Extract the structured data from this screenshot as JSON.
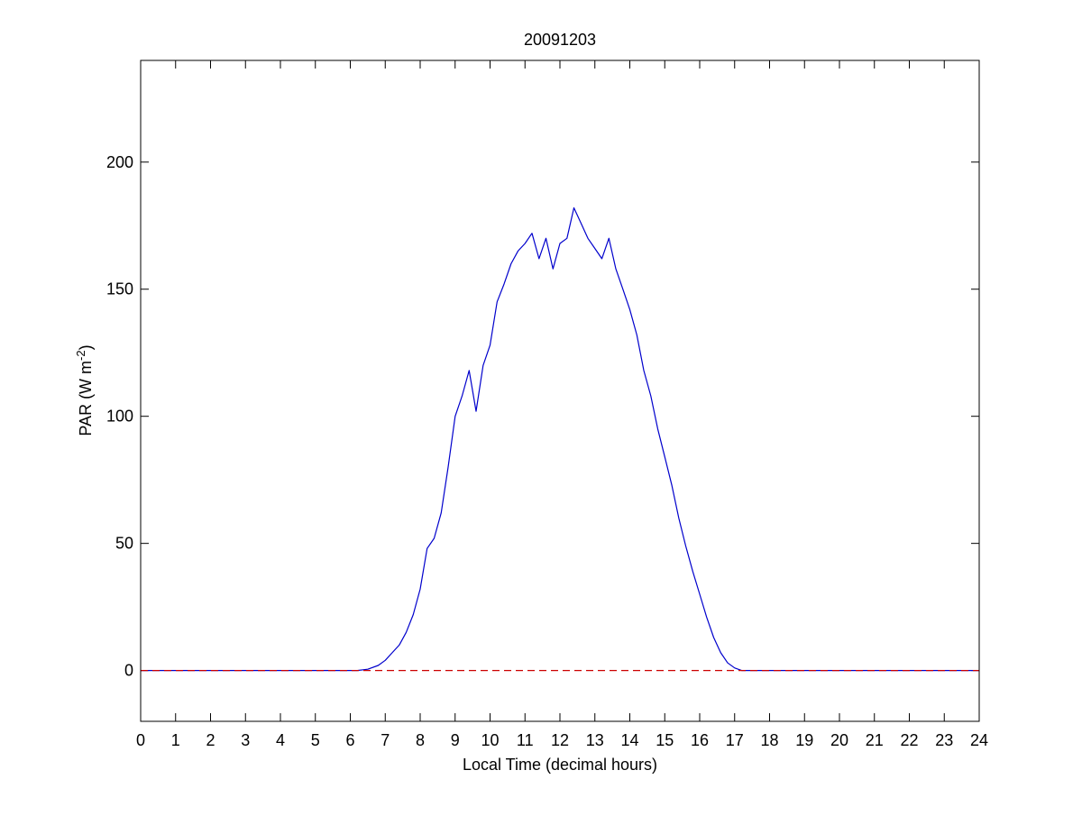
{
  "chart_data": {
    "type": "line",
    "title": "20091203",
    "xlabel": "Local Time (decimal hours)",
    "ylabel": {
      "prefix": "PAR (W m",
      "superscript": "-2",
      "suffix": ")"
    },
    "xlim": [
      0,
      24
    ],
    "ylim": [
      -20,
      240
    ],
    "xticks": [
      0,
      1,
      2,
      3,
      4,
      5,
      6,
      7,
      8,
      9,
      10,
      11,
      12,
      13,
      14,
      15,
      16,
      17,
      18,
      19,
      20,
      21,
      22,
      23,
      24
    ],
    "yticks": [
      0,
      50,
      100,
      150,
      200
    ],
    "grid": false,
    "series": [
      {
        "color": "#0000cc",
        "style": "solid",
        "x": [
          0,
          6.2,
          6.5,
          6.8,
          7.0,
          7.2,
          7.4,
          7.6,
          7.8,
          8.0,
          8.2,
          8.4,
          8.6,
          8.8,
          9.0,
          9.2,
          9.4,
          9.6,
          9.8,
          10.0,
          10.2,
          10.4,
          10.6,
          10.8,
          11.0,
          11.2,
          11.4,
          11.6,
          11.8,
          12.0,
          12.2,
          12.4,
          12.6,
          12.8,
          13.0,
          13.2,
          13.4,
          13.6,
          13.8,
          14.0,
          14.2,
          14.4,
          14.6,
          14.8,
          15.0,
          15.2,
          15.4,
          15.6,
          15.8,
          16.0,
          16.2,
          16.4,
          16.6,
          16.8,
          17.0,
          17.2,
          17.5,
          24
        ],
        "y": [
          0,
          0,
          0.5,
          2,
          4,
          7,
          10,
          15,
          22,
          32,
          48,
          52,
          62,
          80,
          100,
          108,
          118,
          102,
          120,
          128,
          145,
          152,
          160,
          165,
          168,
          172,
          162,
          170,
          158,
          168,
          170,
          182,
          176,
          170,
          166,
          162,
          170,
          158,
          150,
          142,
          132,
          118,
          108,
          95,
          84,
          73,
          60,
          49,
          39,
          30,
          21,
          13,
          7,
          3,
          1,
          0,
          0,
          0
        ]
      },
      {
        "color": "#cc0000",
        "style": "dashed",
        "x": [
          0,
          24
        ],
        "y": [
          0,
          0
        ]
      }
    ]
  }
}
